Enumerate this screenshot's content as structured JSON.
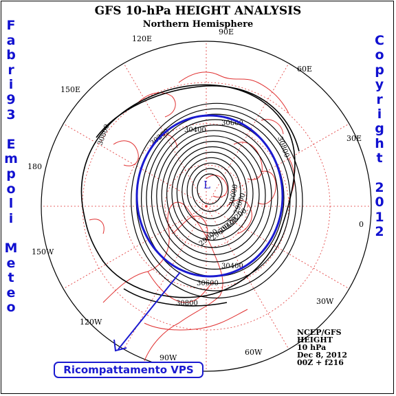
{
  "title": "GFS 10-hPa HEIGHT ANALYSIS",
  "subtitle": "Northern Hemisphere",
  "left_vertical": [
    "F",
    "a",
    "b",
    "r",
    "i",
    "9",
    "3",
    "",
    "E",
    "m",
    "p",
    "o",
    "l",
    "i",
    "",
    "M",
    "e",
    "t",
    "e",
    "o"
  ],
  "right_vertical": [
    "C",
    "o",
    "p",
    "y",
    "r",
    "i",
    "g",
    "h",
    "t",
    "",
    "2",
    "0",
    "1",
    "2"
  ],
  "longitude_labels": {
    "lon_90E": "90E",
    "lon_60E": "60E",
    "lon_30E": "30E",
    "lon_0": "0",
    "lon_30W": "30W",
    "lon_60W": "60W",
    "lon_90W": "90W",
    "lon_120W": "120W",
    "lon_150W": "150W",
    "lon_180": "180",
    "lon_150E": "150E",
    "lon_120E": "120E"
  },
  "contour_labels": [
    "30800",
    "30600",
    "30400",
    "30200",
    "30800",
    "30600",
    "30400",
    "30800",
    "29800",
    "29600",
    "29400",
    "29200",
    "29000",
    "30000"
  ],
  "low_marker": "L",
  "info": [
    "NCEP/GFS",
    "HEIGHT",
    "10 hPa",
    "Dec 8, 2012",
    "00Z + f216"
  ],
  "callout": "Ricompattamento VPS",
  "colors": {
    "map_lines": "#e03030",
    "annotation_blue": "#1a1ad0",
    "contours": "#000000"
  }
}
